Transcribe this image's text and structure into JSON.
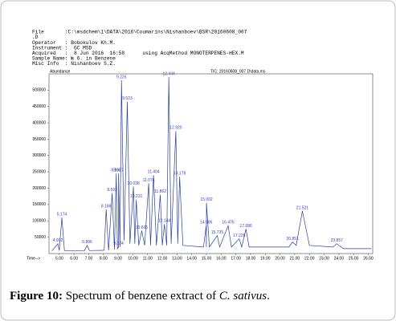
{
  "header": {
    "lines": [
      "File       :C:\\msdchem\\1\\DATA\\2016\\Coumarins\\Nishanboev\\BSR\\20160608_007",
      ".D",
      "Operator   : Bobokulov Kh.M.",
      "Instrument :  GC MSD",
      "Acquired   :  8 Jun 2016  16:58      using AcqMethod MONOTERPENES-HEX.M",
      "Sample Name: № 6. in Benzene",
      "Misc Info  : Nishanboev S.Z."
    ]
  },
  "chart_data": {
    "type": "line",
    "title": "TIC: 20160608_007.D\\data.ms",
    "ylabel": "Abundance",
    "xlabel": "Time-->",
    "color": "#2a3f9a",
    "label_color": "#3a3ad0",
    "x": [
      4.5,
      4.902,
      5.0,
      5.174,
      5.35,
      6.7,
      6.896,
      7.05,
      8.05,
      8.186,
      8.35,
      8.592,
      8.75,
      8.868,
      8.95,
      9.024,
      9.027,
      9.12,
      9.226,
      9.4,
      9.623,
      9.8,
      10.038,
      10.13,
      10.231,
      10.4,
      10.605,
      10.8,
      11.074,
      11.2,
      11.404,
      11.6,
      11.862,
      12.0,
      12.144,
      12.3,
      12.444,
      12.6,
      12.92,
      13.05,
      13.178,
      13.4,
      14.8,
      14.986,
      14.995,
      15.002,
      15.2,
      15.735,
      15.9,
      16.476,
      16.7,
      17.226,
      17.4,
      17.686,
      17.9,
      20.6,
      20.851,
      21.1,
      21.521,
      22.0,
      23.6,
      23.857,
      24.3,
      26.2
    ],
    "values": [
      8000,
      30000,
      9000,
      110000,
      9000,
      9000,
      25000,
      9000,
      10000,
      135000,
      10000,
      185000,
      12000,
      245000,
      15000,
      20000,
      245000,
      20000,
      530000,
      40000,
      465000,
      30000,
      205000,
      30000,
      165000,
      25000,
      70000,
      25000,
      215000,
      25000,
      240000,
      25000,
      180000,
      25000,
      90000,
      25000,
      540000,
      30000,
      375000,
      30000,
      235000,
      25000,
      20000,
      85000,
      20000,
      155000,
      20000,
      55000,
      20000,
      85000,
      20000,
      45000,
      20000,
      75000,
      20000,
      20000,
      35000,
      25000,
      130000,
      25000,
      20000,
      30000,
      15000,
      15000
    ],
    "peak_labels": [
      null,
      "4.902",
      null,
      "5.174",
      null,
      null,
      "6.896",
      null,
      null,
      "8.186",
      null,
      "8.592",
      null,
      "8.868",
      null,
      "9.024",
      "9.027",
      null,
      "9.226",
      null,
      "9.623",
      null,
      "10.038",
      null,
      "10.231",
      null,
      "10.605",
      null,
      "11.074",
      null,
      "11.404",
      null,
      "11.862",
      null,
      "12.144",
      null,
      "12.444",
      null,
      "12.920",
      null,
      "13.178",
      null,
      null,
      "14.986",
      null,
      "15.002",
      null,
      "15.735",
      null,
      "16.476",
      null,
      "17.226",
      null,
      "17.686",
      null,
      null,
      "20.851",
      null,
      "21.521",
      null,
      null,
      "23.857",
      null,
      null
    ],
    "xlim": [
      4.3,
      26.3
    ],
    "ylim": [
      0,
      550000
    ],
    "xticks": [
      {
        "value": 5,
        "label": "5.00"
      },
      {
        "value": 6,
        "label": "6.00"
      },
      {
        "value": 7,
        "label": "7.00"
      },
      {
        "value": 8,
        "label": "8.00"
      },
      {
        "value": 9,
        "label": "9.00"
      },
      {
        "value": 10,
        "label": "10.00"
      },
      {
        "value": 11,
        "label": "11.00"
      },
      {
        "value": 12,
        "label": "12.00"
      },
      {
        "value": 13,
        "label": "13.00"
      },
      {
        "value": 14,
        "label": "14.00"
      },
      {
        "value": 15,
        "label": "15.00"
      },
      {
        "value": 16,
        "label": "16.00"
      },
      {
        "value": 17,
        "label": "17.00"
      },
      {
        "value": 18,
        "label": "18.00"
      },
      {
        "value": 19,
        "label": "19.00"
      },
      {
        "value": 20,
        "label": "20.00"
      },
      {
        "value": 21,
        "label": "21.00"
      },
      {
        "value": 22,
        "label": "22.00"
      },
      {
        "value": 23,
        "label": "23.00"
      },
      {
        "value": 24,
        "label": "24.00"
      },
      {
        "value": 25,
        "label": "25.00"
      },
      {
        "value": 26,
        "label": "26.00"
      }
    ],
    "yticks": [
      50000,
      100000,
      150000,
      200000,
      250000,
      300000,
      350000,
      400000,
      450000,
      500000
    ]
  },
  "caption": {
    "label": "Figure 10:",
    "text": " Spectrum of benzene extract of ",
    "species": "C. sativus",
    "end": "."
  }
}
